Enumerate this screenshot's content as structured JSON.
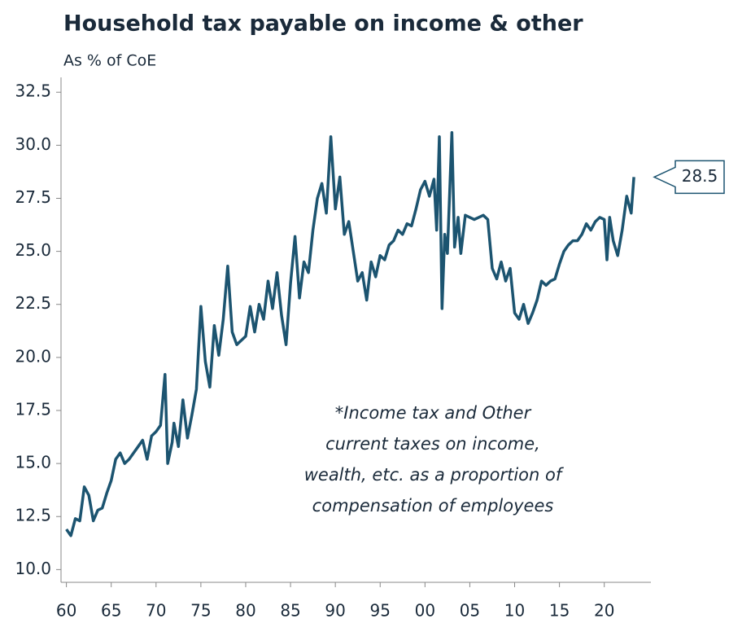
{
  "chart_data": {
    "type": "line",
    "title": "Household tax payable on income & other",
    "subtitle": "As % of CoE",
    "annotation": [
      "*Income tax and Other",
      "current taxes on income,",
      "wealth, etc. as a proportion of",
      "compensation of employees"
    ],
    "x": [
      1960,
      1960.5,
      1961,
      1961.5,
      1962,
      1962.5,
      1963,
      1963.5,
      1964,
      1964.5,
      1965,
      1965.5,
      1966,
      1966.5,
      1967,
      1967.5,
      1968,
      1968.5,
      1969,
      1969.5,
      1970,
      1970.5,
      1971,
      1971.3,
      1971.8,
      1972,
      1972.5,
      1973,
      1973.5,
      1974,
      1974.5,
      1975,
      1975.5,
      1976,
      1976.5,
      1977,
      1977.5,
      1978,
      1978.5,
      1979,
      1979.5,
      1980,
      1980.5,
      1981,
      1981.5,
      1982,
      1982.5,
      1983,
      1983.5,
      1984,
      1984.5,
      1985,
      1985.5,
      1986,
      1986.5,
      1987,
      1987.5,
      1988,
      1988.5,
      1989,
      1989.5,
      1990,
      1990.5,
      1991,
      1991.5,
      1992,
      1992.5,
      1993,
      1993.5,
      1994,
      1994.5,
      1995,
      1995.5,
      1996,
      1996.5,
      1997,
      1997.5,
      1998,
      1998.5,
      1999,
      1999.5,
      2000,
      2000.5,
      2001,
      2001.3,
      2001.6,
      2001.9,
      2002.2,
      2002.5,
      2003,
      2003.3,
      2003.7,
      2004,
      2004.5,
      2005,
      2005.5,
      2006,
      2006.5,
      2007,
      2007.5,
      2008,
      2008.5,
      2009,
      2009.5,
      2010,
      2010.5,
      2011,
      2011.5,
      2012,
      2012.5,
      2013,
      2013.5,
      2014,
      2014.5,
      2015,
      2015.5,
      2016,
      2016.5,
      2017,
      2017.5,
      2018,
      2018.5,
      2019,
      2019.5,
      2020,
      2020.3,
      2020.6,
      2021,
      2021.5,
      2022,
      2022.5,
      2023,
      2023.3
    ],
    "values": [
      11.9,
      11.6,
      12.4,
      12.3,
      13.9,
      13.5,
      12.3,
      12.8,
      12.9,
      13.6,
      14.2,
      15.2,
      15.5,
      15.0,
      15.2,
      15.5,
      15.8,
      16.1,
      15.2,
      16.3,
      16.5,
      16.8,
      19.2,
      15.0,
      16.0,
      16.9,
      15.8,
      18.0,
      16.2,
      17.3,
      18.5,
      22.4,
      19.8,
      18.6,
      21.5,
      20.1,
      21.8,
      24.3,
      21.2,
      20.6,
      20.8,
      21.0,
      22.4,
      21.2,
      22.5,
      21.8,
      23.6,
      22.3,
      24.0,
      22.0,
      20.6,
      23.5,
      25.7,
      22.8,
      24.5,
      24.0,
      26.0,
      27.5,
      28.2,
      26.8,
      30.4,
      27.0,
      28.5,
      25.8,
      26.4,
      25.0,
      23.6,
      24.0,
      22.7,
      24.5,
      23.8,
      24.8,
      24.6,
      25.3,
      25.5,
      26.0,
      25.8,
      26.3,
      26.2,
      27.0,
      27.9,
      28.3,
      27.6,
      28.4,
      26.0,
      30.4,
      22.3,
      25.8,
      24.9,
      30.6,
      25.2,
      26.6,
      24.9,
      26.7,
      26.6,
      26.5,
      26.6,
      26.7,
      26.5,
      24.2,
      23.7,
      24.5,
      23.6,
      24.2,
      22.1,
      21.8,
      22.5,
      21.6,
      22.1,
      22.7,
      23.6,
      23.4,
      23.6,
      23.7,
      24.4,
      25.0,
      25.3,
      25.5,
      25.5,
      25.8,
      26.3,
      26.0,
      26.4,
      26.6,
      26.5,
      24.6,
      26.6,
      25.5,
      24.8,
      26.0,
      27.6,
      26.8,
      28.5
    ],
    "color": "#1c5470",
    "xlim": [
      1959.4,
      2025.2
    ],
    "xticks": [
      {
        "value": 1960,
        "label": "60"
      },
      {
        "value": 1965,
        "label": "65"
      },
      {
        "value": 1970,
        "label": "70"
      },
      {
        "value": 1975,
        "label": "75"
      },
      {
        "value": 1980,
        "label": "80"
      },
      {
        "value": 1985,
        "label": "85"
      },
      {
        "value": 1990,
        "label": "90"
      },
      {
        "value": 1995,
        "label": "95"
      },
      {
        "value": 2000,
        "label": "00"
      },
      {
        "value": 2005,
        "label": "05"
      },
      {
        "value": 2010,
        "label": "10"
      },
      {
        "value": 2015,
        "label": "15"
      },
      {
        "value": 2020,
        "label": "20"
      }
    ],
    "ylim": [
      9.4,
      33.2
    ],
    "yticks": [
      {
        "value": 10,
        "label": "10.0"
      },
      12.5,
      {
        "value": 15,
        "label": "15.0"
      },
      17.5,
      {
        "value": 20,
        "label": "20.0"
      },
      22.5,
      {
        "value": 25,
        "label": "25.0"
      },
      27.5,
      {
        "value": 30,
        "label": "30.0"
      },
      32.5
    ]
  }
}
